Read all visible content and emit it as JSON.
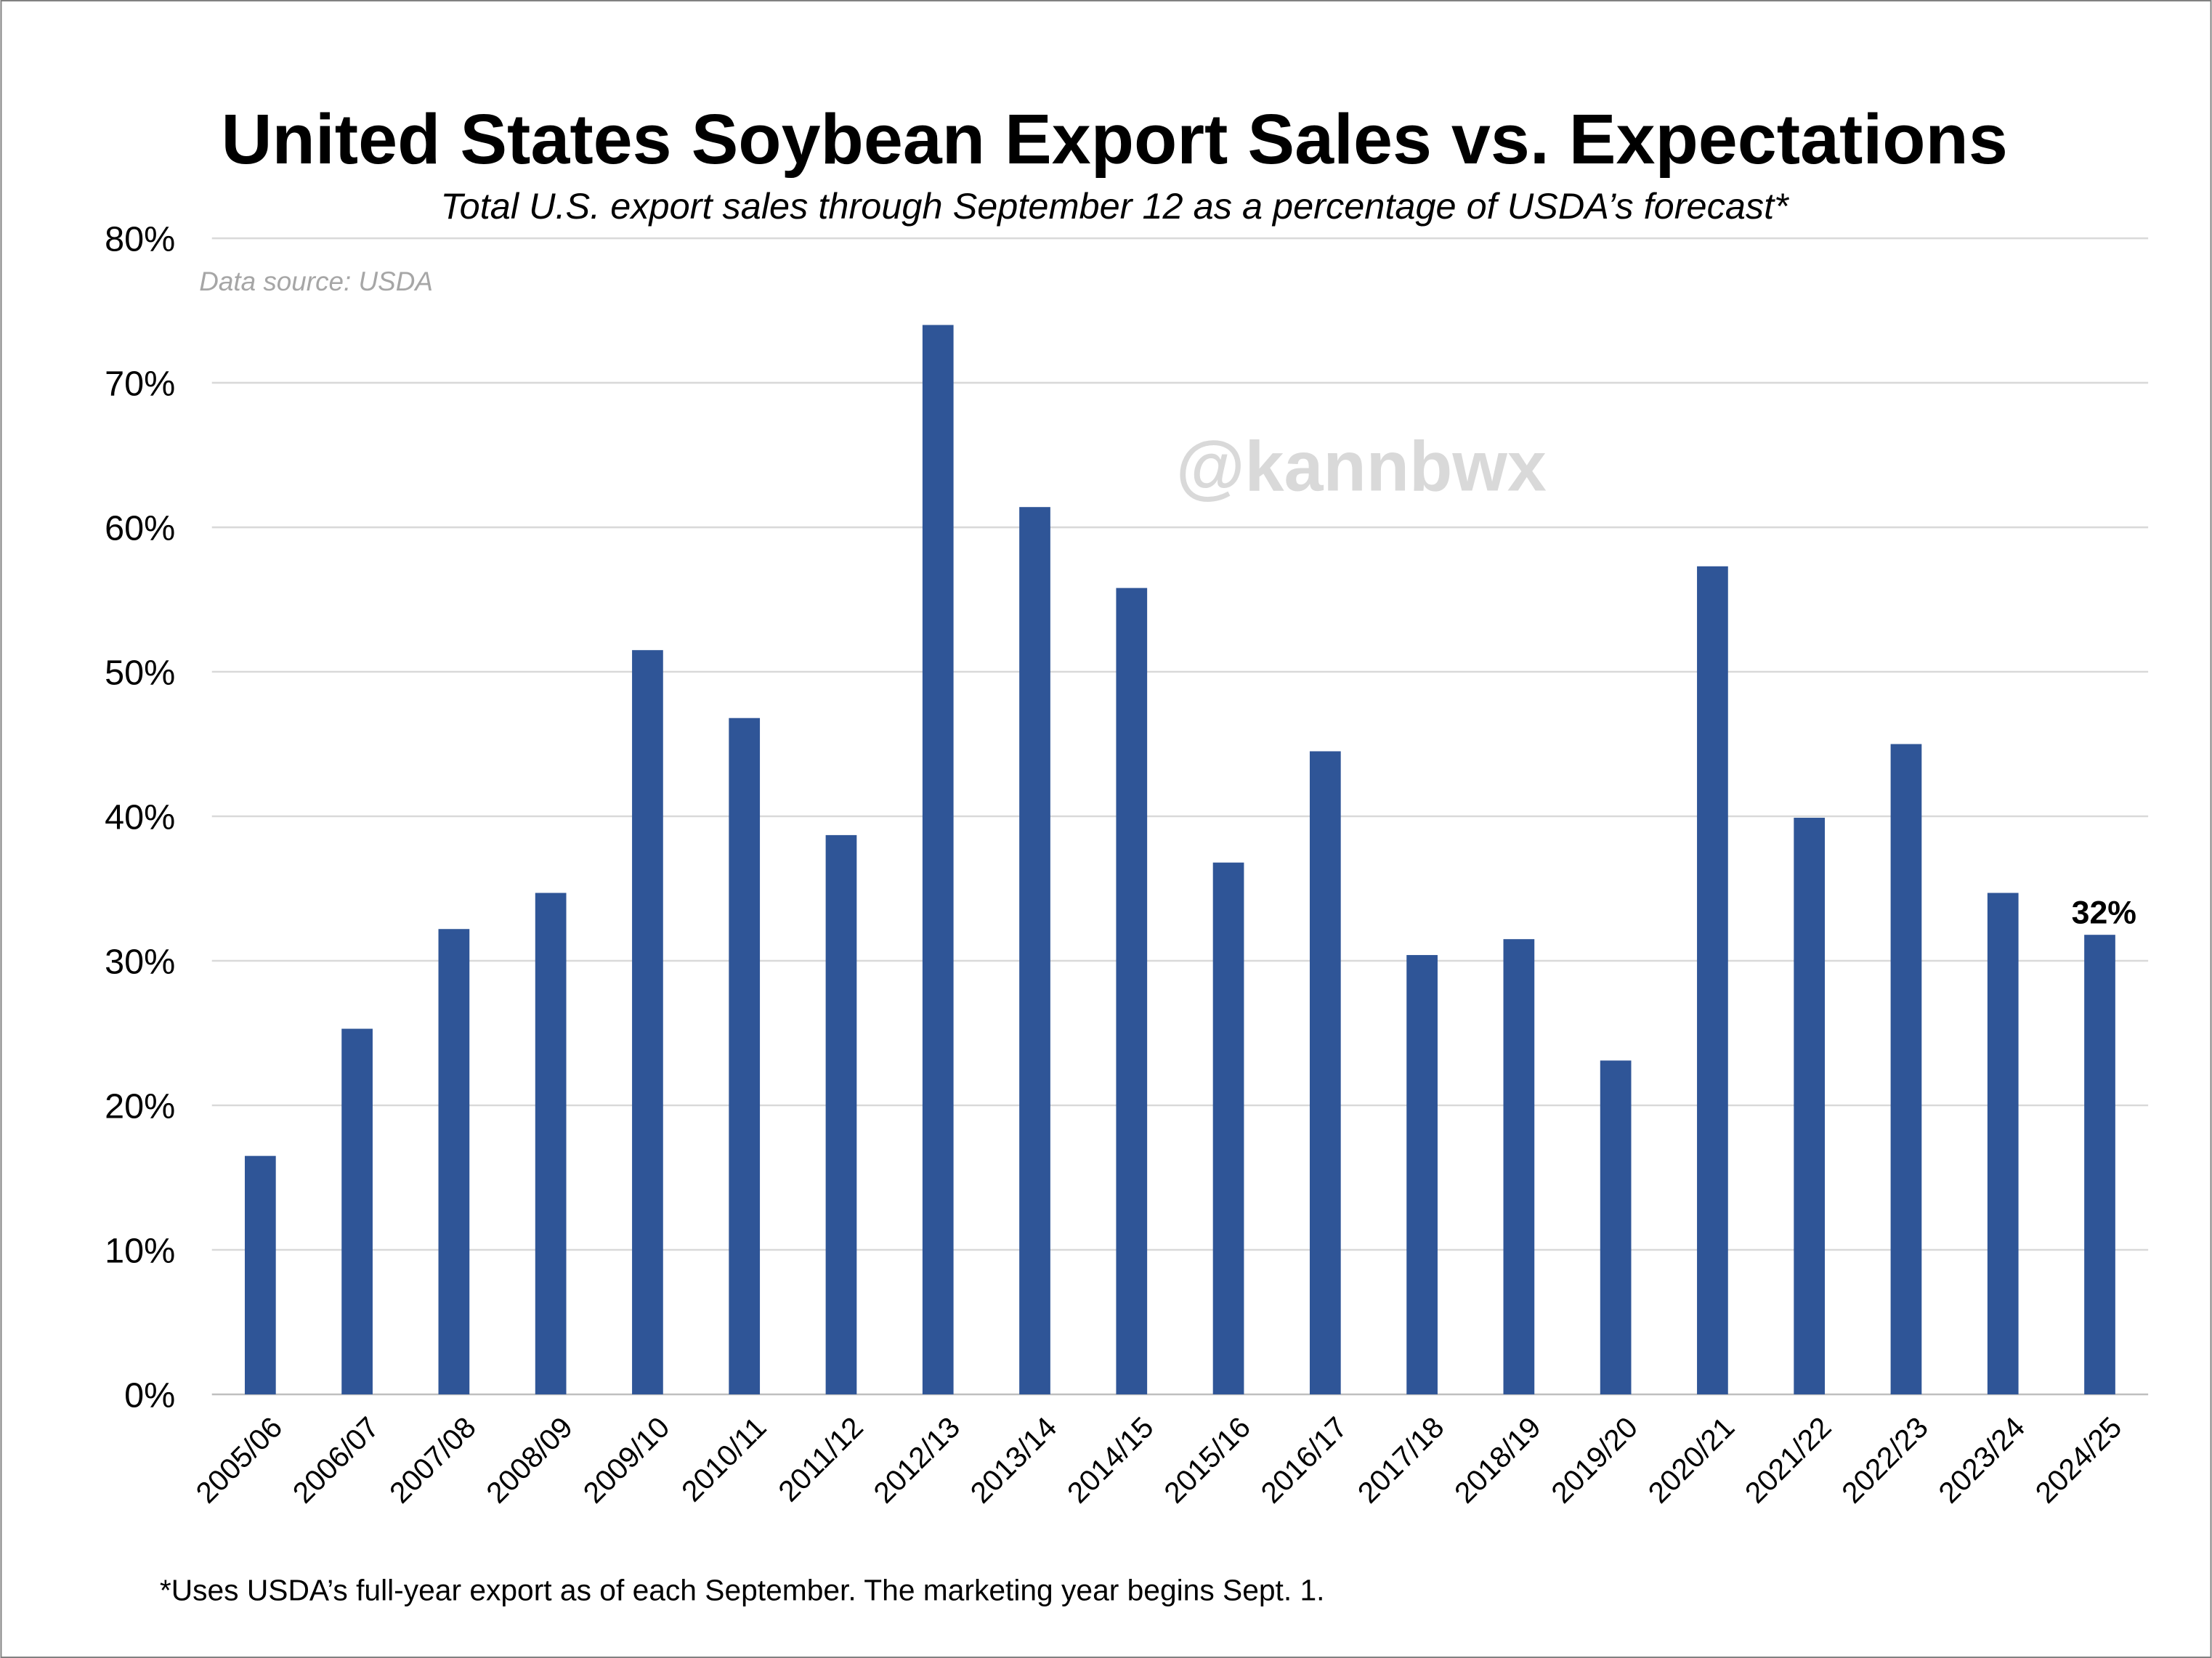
{
  "chart_data": {
    "type": "bar",
    "title": "United States Soybean Export Sales vs. Expectations",
    "subtitle": "Total U.S. export sales through September 12 as a percentage of USDA’s forecast*",
    "source": "Data source: USDA",
    "watermark": "@kannbwx",
    "footnote": "*Uses USDA’s full-year export as of each September. The marketing year begins Sept. 1.",
    "xlabel": "",
    "ylabel": "",
    "ylim": [
      0,
      80
    ],
    "yticks": [
      0,
      10,
      20,
      30,
      40,
      50,
      60,
      70,
      80
    ],
    "ytick_labels": [
      "0%",
      "10%",
      "20%",
      "30%",
      "40%",
      "50%",
      "60%",
      "70%",
      "80%"
    ],
    "grid": true,
    "bar_color": "#2F5597",
    "categories": [
      "2005/06",
      "2006/07",
      "2007/08",
      "2008/09",
      "2009/10",
      "2010/11",
      "2011/12",
      "2012/13",
      "2013/14",
      "2014/15",
      "2015/16",
      "2016/17",
      "2017/18",
      "2018/19",
      "2019/20",
      "2020/21",
      "2021/22",
      "2022/23",
      "2023/24",
      "2024/25"
    ],
    "values": [
      16.5,
      25.3,
      32.2,
      34.7,
      51.5,
      46.8,
      38.7,
      74.0,
      61.4,
      55.8,
      36.8,
      44.5,
      30.4,
      31.5,
      23.1,
      57.3,
      39.9,
      45.0,
      34.7,
      31.8
    ],
    "annotations": [
      {
        "category": "2024/25",
        "text": "32%"
      }
    ]
  }
}
